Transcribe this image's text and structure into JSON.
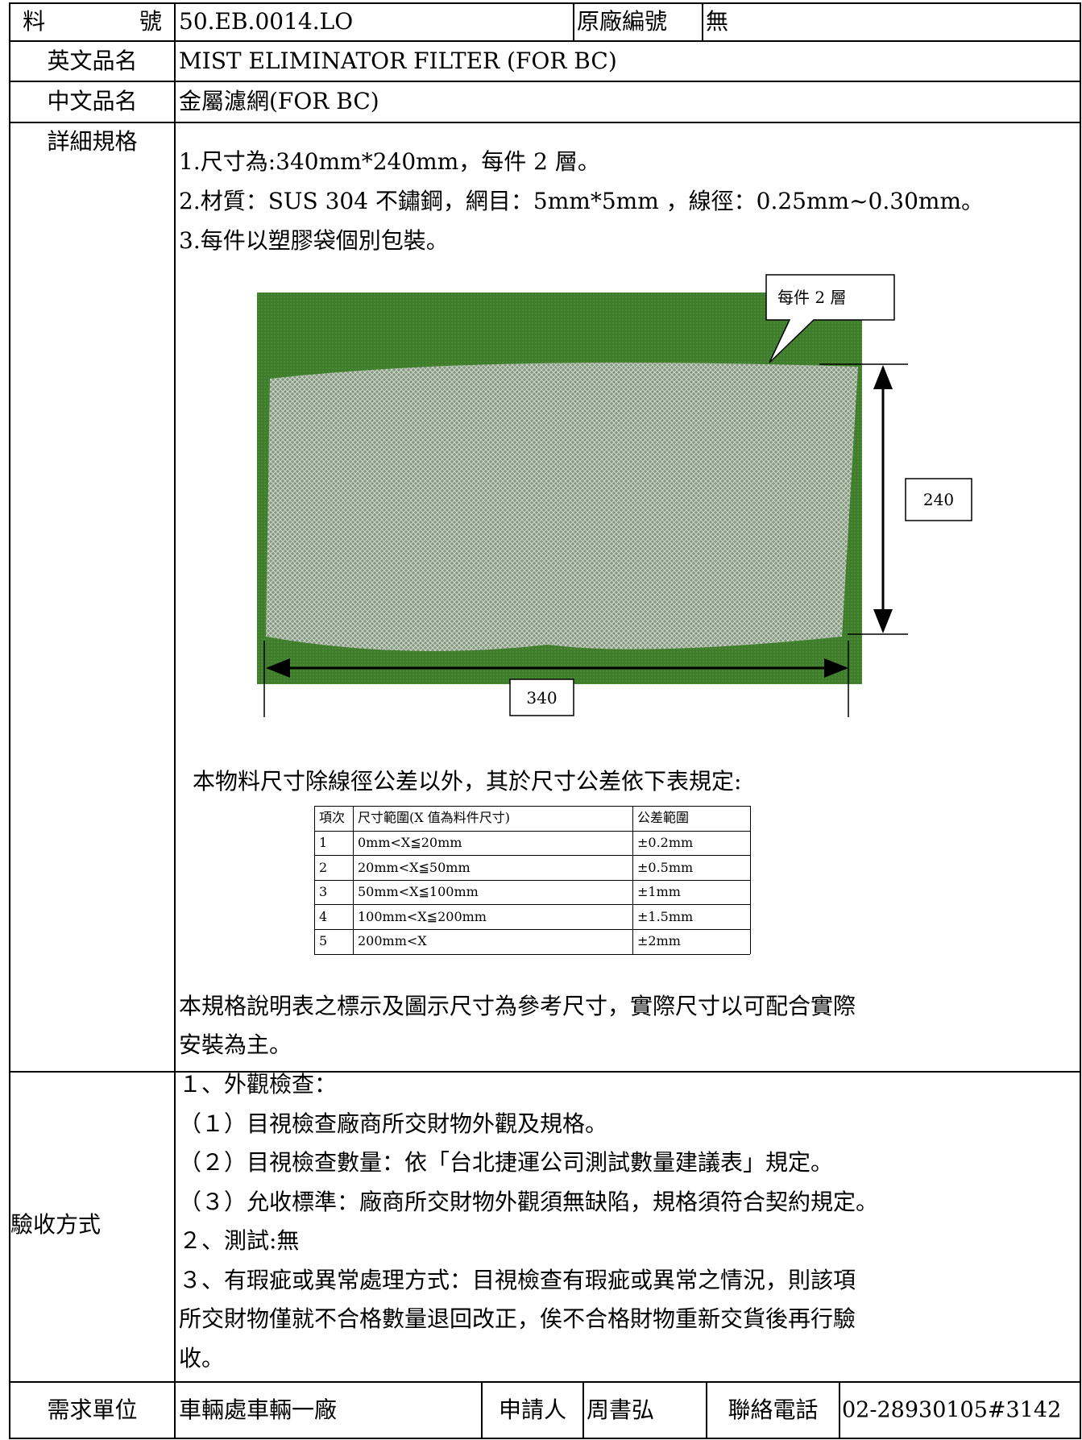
{
  "part_no": {
    "label": "料   號",
    "value": "50.EB.0014.LO",
    "orig_label": "原廠編號",
    "orig_value": "無"
  },
  "english_name": {
    "label": "英文品名",
    "value": "MIST ELIMINATOR FILTER (FOR BC)"
  },
  "chinese_name": {
    "label": "中文品名",
    "value": "金屬濾網(FOR BC)"
  },
  "spec": {
    "label": "詳細規格",
    "lines": [
      "1.尺寸為:340mm*240mm，每件 2 層。",
      "2.材質：SUS 304 不鏽鋼，網目：5mm*5mm ，線徑：0.25mm~0.30mm。",
      "3.每件以塑膠袋個別包裝。"
    ],
    "figure": {
      "callout": "每件 2 層",
      "height_label": "240",
      "width_label": "340"
    },
    "tolerance_intro": "本物料尺寸除線徑公差以外，其於尺寸公差依下表規定:",
    "tolerance_table": {
      "header": [
        "項次",
        "尺寸範圍(X 值為料件尺寸)",
        "公差範圍"
      ],
      "rows": [
        [
          "1",
          "0mm<X≦20mm",
          "±0.2mm"
        ],
        [
          "2",
          "20mm<X≦50mm",
          "±0.5mm"
        ],
        [
          "3",
          "50mm<X≦100mm",
          "±1mm"
        ],
        [
          "4",
          "100mm<X≦200mm",
          "±1.5mm"
        ],
        [
          "5",
          "200mm<X",
          "±2mm"
        ]
      ]
    },
    "note": [
      "本規格說明表之標示及圖示尺寸為參考尺寸，實際尺寸以可配合實際",
      "安裝為主。"
    ]
  },
  "acceptance": {
    "label": "驗收方式",
    "lines": [
      "１、外觀檢查：",
      "（１）目視檢查廠商所交財物外觀及規格。",
      "（２）目視檢查數量：依「台北捷運公司測試數量建議表」規定。",
      "（３）允收標準：廠商所交財物外觀須無缺陷，規格須符合契約規定。",
      "２、測試:無",
      "３、有瑕疵或異常處理方式：目視檢查有瑕疵或異常之情況，則該項",
      "所交財物僅就不合格數量退回改正，俟不合格財物重新交貨後再行驗",
      "收。"
    ]
  },
  "footer": {
    "unit_label": "需求單位",
    "unit": "車輛處車輛一廠",
    "applicant_label": "申請人",
    "applicant": "周書弘",
    "phone_label": "聯絡電話",
    "phone": "02-28930105#3142"
  }
}
